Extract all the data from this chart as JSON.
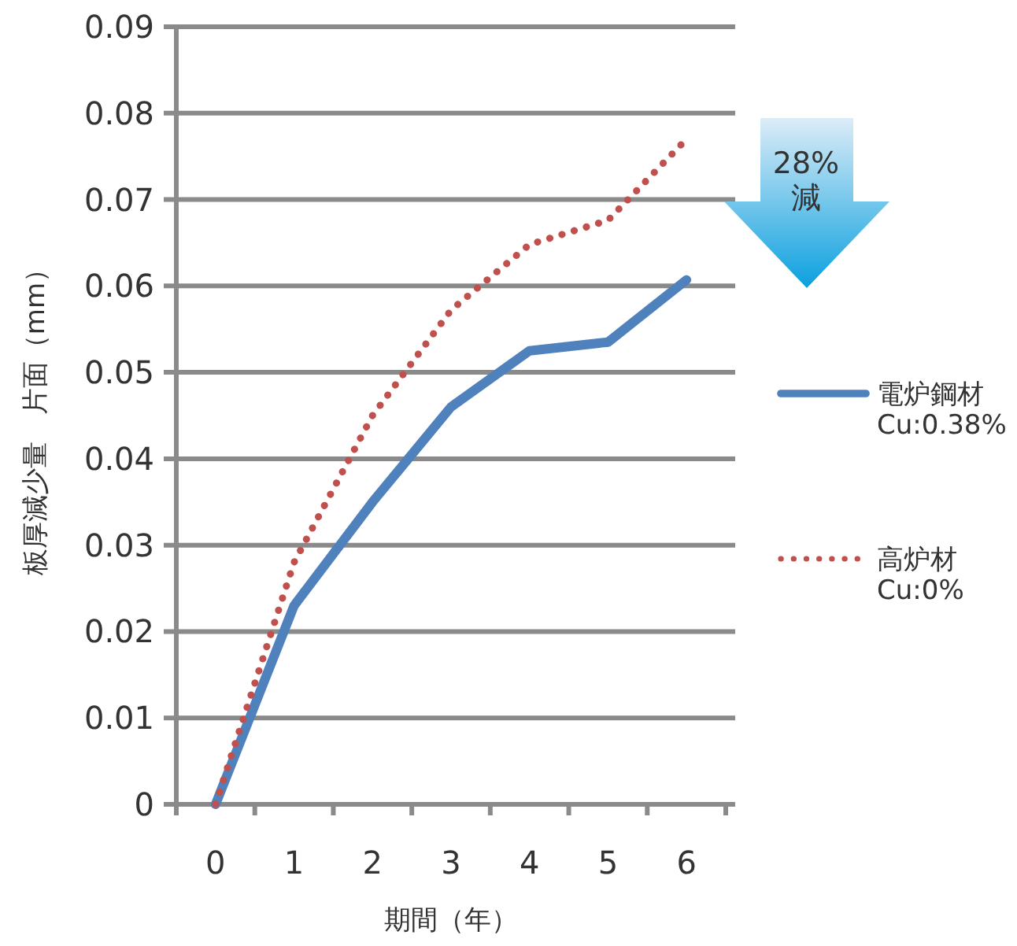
{
  "chart_data": {
    "type": "line",
    "xlabel": "期間（年）",
    "ylabel": "板厚減少量　片面（mm）",
    "categories": [
      "0",
      "1",
      "2",
      "3",
      "4",
      "5",
      "6"
    ],
    "series": [
      {
        "name": "電炉鋼材\nCu:0.38%",
        "color": "#4f81bd",
        "line_style": "solid",
        "values": [
          0,
          0.023,
          0.035,
          0.046,
          0.0525,
          0.0535,
          0.0607
        ]
      },
      {
        "name": "高炉材\nCu:0%",
        "color": "#c0504d",
        "line_style": "dotted",
        "values": [
          0,
          0.028,
          0.045,
          0.0572,
          0.0648,
          0.0676,
          0.077
        ]
      }
    ],
    "ylim": [
      0,
      0.09
    ],
    "yticks": [
      0,
      0.01,
      0.02,
      0.03,
      0.04,
      0.05,
      0.06,
      0.07,
      0.08,
      0.09
    ],
    "grid": "y",
    "legend": "right",
    "marker": "none",
    "annotations": [
      "28%\n減"
    ]
  }
}
